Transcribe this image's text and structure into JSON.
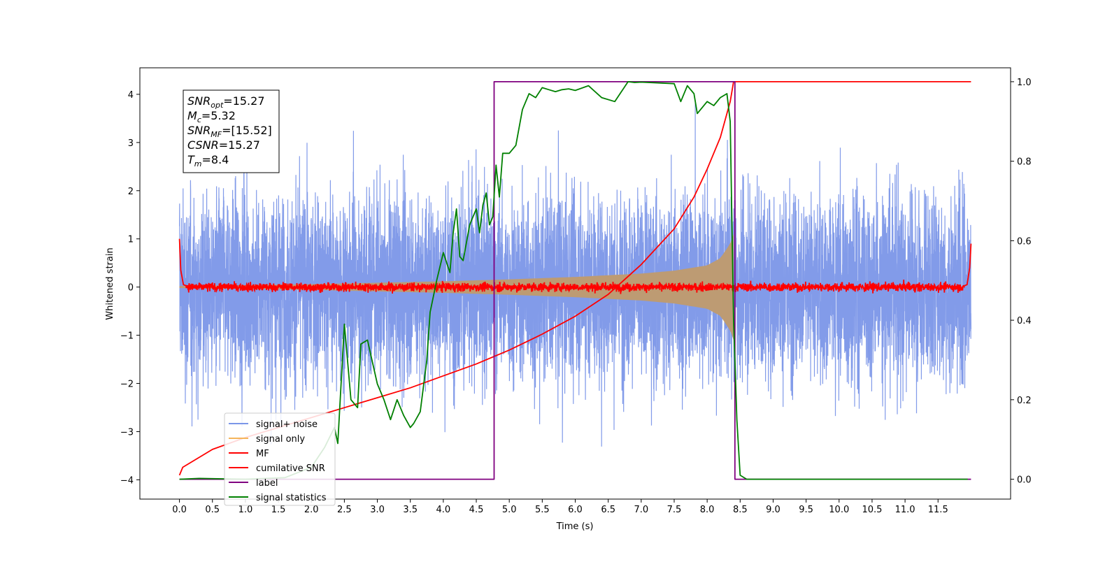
{
  "chart_data": {
    "type": "line",
    "xlabel": "Time (s)",
    "ylabel": "Whitened strain",
    "xlim": [
      -0.6,
      12.6
    ],
    "ylim": [
      -4.4,
      4.55
    ],
    "ylim_right": [
      -0.05,
      1.035
    ],
    "x_ticks": [
      0.0,
      0.5,
      1.0,
      1.5,
      2.0,
      2.5,
      3.0,
      3.5,
      4.0,
      4.5,
      5.0,
      5.5,
      6.0,
      6.5,
      7.0,
      7.5,
      8.0,
      8.5,
      9.0,
      9.5,
      10.0,
      10.5,
      11.0,
      11.5
    ],
    "x_tick_labels": [
      "0.0",
      "0.5",
      "1.0",
      "1.5",
      "2.0",
      "2.5",
      "3.0",
      "3.5",
      "4.0",
      "4.5",
      "5.0",
      "5.5",
      "6.0",
      "6.5",
      "7.0",
      "7.5",
      "8.0",
      "8.5",
      "9.0",
      "9.5",
      "10.0",
      "10.5",
      "11.0",
      "11.5"
    ],
    "y_ticks": [
      -4,
      -3,
      -2,
      -1,
      0,
      1,
      2,
      3,
      4
    ],
    "y_tick_labels": [
      "−4",
      "−3",
      "−2",
      "−1",
      "0",
      "1",
      "2",
      "3",
      "4"
    ],
    "y_right_ticks": [
      0.0,
      0.2,
      0.4,
      0.6,
      0.8,
      1.0
    ],
    "y_right_tick_labels": [
      "0.0",
      "0.2",
      "0.4",
      "0.6",
      "0.8",
      "1.0"
    ],
    "grid": false,
    "legend_position": "lower-left",
    "annotation": [
      {
        "base": "SNR",
        "sub": "opt",
        "rest": "=15.27"
      },
      {
        "base": "M",
        "sub": "c",
        "rest": "=5.32"
      },
      {
        "base": "SNR",
        "sub": "MF",
        "rest": "=[15.52]"
      },
      {
        "base": "CSNR",
        "sub": "",
        "rest": "=15.27"
      },
      {
        "base": "T",
        "sub": "m",
        "rest": "=8.4"
      }
    ],
    "series": [
      {
        "name": "signal+ noise",
        "axis": "left",
        "color": "#7b96e8",
        "noise_envelope": [
          -3.5,
          4.1
        ],
        "t_range": [
          0.0,
          12.0
        ]
      },
      {
        "name": "signal only",
        "axis": "left",
        "color": "#f5b55a",
        "fill_color": "#bd9b73",
        "envelope": {
          "t": [
            0.0,
            2.0,
            4.0,
            5.0,
            6.0,
            7.0,
            7.5,
            8.0,
            8.2,
            8.35,
            8.4
          ],
          "a": [
            0.02,
            0.06,
            0.12,
            0.16,
            0.21,
            0.28,
            0.34,
            0.45,
            0.6,
            0.9,
            1.1
          ]
        }
      },
      {
        "name": "MF",
        "axis": "left",
        "color": "#ff0000",
        "t": [
          0.0,
          0.02,
          0.06,
          0.15,
          11.85,
          11.94,
          11.98,
          12.0
        ],
        "y": [
          1.0,
          0.35,
          0.05,
          0.0,
          0.0,
          0.05,
          0.4,
          0.9
        ]
      },
      {
        "name": "cumilative SNR",
        "axis": "right",
        "color": "#ff0000",
        "t": [
          0.0,
          0.05,
          0.5,
          1.0,
          1.5,
          2.0,
          2.5,
          3.0,
          3.5,
          4.0,
          4.5,
          5.0,
          5.5,
          6.0,
          6.5,
          7.0,
          7.5,
          7.8,
          8.0,
          8.2,
          8.35,
          8.4,
          12.0
        ],
        "y": [
          0.01,
          0.03,
          0.075,
          0.105,
          0.13,
          0.155,
          0.18,
          0.205,
          0.23,
          0.26,
          0.29,
          0.325,
          0.365,
          0.41,
          0.465,
          0.54,
          0.63,
          0.71,
          0.78,
          0.86,
          0.95,
          1.0,
          1.0
        ]
      },
      {
        "name": "label",
        "axis": "right",
        "color": "#800080",
        "t": [
          0.0,
          4.77,
          4.77,
          8.42,
          8.42,
          12.0
        ],
        "y": [
          0.0,
          0.0,
          1.0,
          1.0,
          0.0,
          0.0
        ]
      },
      {
        "name": "signal statistics",
        "axis": "right",
        "color": "#008000",
        "t": [
          0.0,
          0.3,
          1.0,
          1.6,
          2.0,
          2.2,
          2.35,
          2.4,
          2.5,
          2.6,
          2.7,
          2.75,
          2.85,
          3.0,
          3.1,
          3.2,
          3.3,
          3.4,
          3.5,
          3.55,
          3.65,
          3.75,
          3.8,
          3.9,
          4.0,
          4.1,
          4.15,
          4.2,
          4.25,
          4.3,
          4.4,
          4.45,
          4.5,
          4.55,
          4.6,
          4.65,
          4.7,
          4.75,
          4.8,
          4.85,
          4.9,
          5.0,
          5.1,
          5.2,
          5.3,
          5.4,
          5.5,
          5.6,
          5.7,
          5.8,
          5.9,
          6.0,
          6.2,
          6.4,
          6.6,
          6.8,
          6.9,
          7.0,
          7.5,
          7.6,
          7.7,
          7.8,
          7.85,
          8.0,
          8.1,
          8.2,
          8.3,
          8.35,
          8.4,
          8.45,
          8.5,
          8.6,
          11.95
        ],
        "y": [
          0.0,
          0.002,
          0.0,
          0.004,
          0.03,
          0.08,
          0.13,
          0.09,
          0.39,
          0.2,
          0.18,
          0.34,
          0.35,
          0.24,
          0.2,
          0.15,
          0.2,
          0.16,
          0.13,
          0.14,
          0.17,
          0.3,
          0.42,
          0.5,
          0.57,
          0.52,
          0.62,
          0.68,
          0.56,
          0.55,
          0.64,
          0.66,
          0.68,
          0.62,
          0.69,
          0.72,
          0.64,
          0.66,
          0.79,
          0.71,
          0.82,
          0.82,
          0.84,
          0.93,
          0.97,
          0.96,
          0.985,
          0.98,
          0.975,
          0.98,
          0.982,
          0.978,
          0.99,
          0.96,
          0.95,
          1.0,
          0.998,
          0.999,
          0.995,
          0.95,
          0.99,
          0.97,
          0.92,
          0.95,
          0.94,
          0.96,
          0.97,
          0.9,
          0.4,
          0.15,
          0.01,
          0.0,
          0.0
        ]
      }
    ]
  }
}
